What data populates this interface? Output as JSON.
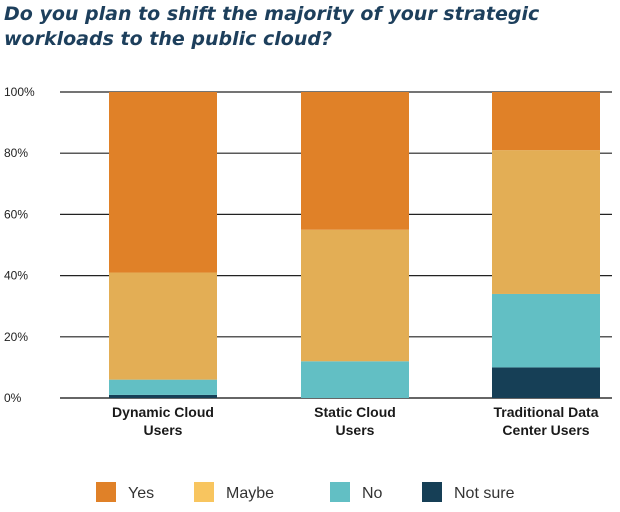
{
  "title": "Do you plan to shift the majority of your strategic workloads to the public cloud?",
  "colors": {
    "Yes": "#e08128",
    "Maybe": "#e3ae55",
    "No": "#62bfc4",
    "Not sure": "#163f56"
  },
  "legend_swatch_colors": {
    "Yes": "#e08128",
    "Maybe": "#f8c55f",
    "No": "#62bfc4",
    "Not sure": "#163f56"
  },
  "chart_data": {
    "type": "bar",
    "stacked": true,
    "categories": [
      [
        "Dynamic Cloud",
        "Users"
      ],
      [
        "Static Cloud",
        "Users"
      ],
      [
        "Traditional Data",
        "Center Users"
      ]
    ],
    "series": [
      {
        "name": "Not sure",
        "values": [
          1,
          0,
          10
        ]
      },
      {
        "name": "No",
        "values": [
          5,
          12,
          24
        ]
      },
      {
        "name": "Maybe",
        "values": [
          35,
          43,
          47
        ]
      },
      {
        "name": "Yes",
        "values": [
          59,
          45,
          19
        ]
      }
    ],
    "ylim": [
      0,
      100
    ],
    "yticks": [
      "0%",
      "20%",
      "40%",
      "60%",
      "80%",
      "100%"
    ],
    "grid": true,
    "legend": [
      "Yes",
      "Maybe",
      "No",
      "Not sure"
    ],
    "legend_position": "bottom"
  }
}
